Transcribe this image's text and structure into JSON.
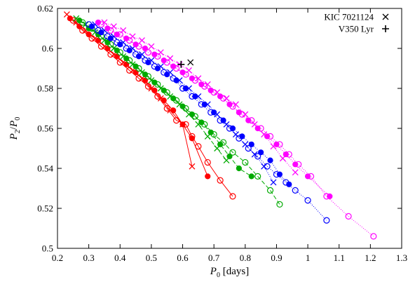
{
  "chart_data": {
    "type": "scatter",
    "xlabel": {
      "prefix": "P",
      "sub": "0",
      "suffix": " [days]"
    },
    "ylabel": {
      "p": "P",
      "num_sub": "2",
      "slash": "/",
      "den": "P",
      "den_sub": "0"
    },
    "xlim": [
      0.2,
      1.3
    ],
    "ylim": [
      0.5,
      0.62
    ],
    "xticks": [
      "0.2",
      "0.3",
      "0.4",
      "0.5",
      "0.6",
      "0.7",
      "0.8",
      "0.9",
      "1",
      "1.1",
      "1.2",
      "1.3"
    ],
    "yticks": [
      "0.5",
      "0.52",
      "0.54",
      "0.56",
      "0.58",
      "0.6",
      "0.62"
    ],
    "grid": false,
    "legend_position": "top-right",
    "legend": [
      {
        "label": "KIC 7021124",
        "marker": "x-cross",
        "x": 0.625,
        "y": 0.593
      },
      {
        "label": "V350 Lyr",
        "marker": "plus",
        "x": 0.595,
        "y": 0.592
      }
    ],
    "series": [
      {
        "color": "#ff0000",
        "marker": "open-circle",
        "dash": "",
        "x": [
          0.25,
          0.28,
          0.31,
          0.34,
          0.37,
          0.4,
          0.43,
          0.46,
          0.49,
          0.52,
          0.55,
          0.58,
          0.61,
          0.63,
          0.65,
          0.68,
          0.72,
          0.76
        ],
        "y": [
          0.614,
          0.609,
          0.605,
          0.601,
          0.597,
          0.593,
          0.589,
          0.585,
          0.581,
          0.576,
          0.57,
          0.564,
          0.562,
          0.556,
          0.551,
          0.543,
          0.534,
          0.526
        ]
      },
      {
        "color": "#ff0000",
        "marker": "filled-circle",
        "dash": "",
        "x": [
          0.24,
          0.27,
          0.3,
          0.33,
          0.36,
          0.39,
          0.42,
          0.45,
          0.48,
          0.51,
          0.54,
          0.57,
          0.6,
          0.63,
          0.68
        ],
        "y": [
          0.615,
          0.611,
          0.607,
          0.604,
          0.6,
          0.596,
          0.592,
          0.588,
          0.584,
          0.579,
          0.574,
          0.569,
          0.562,
          0.555,
          0.536
        ]
      },
      {
        "color": "#ff0000",
        "marker": "x-cross",
        "dash": "",
        "x": [
          0.23,
          0.26,
          0.29,
          0.32,
          0.35,
          0.38,
          0.41,
          0.44,
          0.47,
          0.5,
          0.53,
          0.56,
          0.6,
          0.63
        ],
        "y": [
          0.617,
          0.613,
          0.609,
          0.605,
          0.601,
          0.597,
          0.593,
          0.589,
          0.585,
          0.58,
          0.575,
          0.569,
          0.562,
          0.541
        ]
      },
      {
        "color": "#00aa00",
        "marker": "open-circle",
        "dash": "6,3",
        "x": [
          0.28,
          0.31,
          0.34,
          0.37,
          0.4,
          0.43,
          0.46,
          0.49,
          0.52,
          0.55,
          0.58,
          0.61,
          0.64,
          0.67,
          0.7,
          0.73,
          0.76,
          0.8,
          0.84,
          0.88,
          0.91
        ],
        "y": [
          0.613,
          0.61,
          0.606,
          0.602,
          0.598,
          0.594,
          0.59,
          0.586,
          0.582,
          0.578,
          0.574,
          0.57,
          0.566,
          0.562,
          0.557,
          0.553,
          0.548,
          0.543,
          0.536,
          0.529,
          0.522
        ]
      },
      {
        "color": "#00aa00",
        "marker": "filled-circle",
        "dash": "6,3",
        "x": [
          0.27,
          0.3,
          0.33,
          0.36,
          0.39,
          0.42,
          0.45,
          0.48,
          0.51,
          0.54,
          0.57,
          0.6,
          0.63,
          0.66,
          0.69,
          0.72,
          0.75,
          0.78,
          0.82
        ],
        "y": [
          0.614,
          0.61,
          0.607,
          0.603,
          0.599,
          0.595,
          0.591,
          0.587,
          0.583,
          0.579,
          0.575,
          0.571,
          0.567,
          0.563,
          0.558,
          0.552,
          0.546,
          0.54,
          0.536
        ]
      },
      {
        "color": "#00aa00",
        "marker": "x-cross",
        "dash": "6,3",
        "x": [
          0.26,
          0.29,
          0.32,
          0.35,
          0.38,
          0.41,
          0.44,
          0.47,
          0.5,
          0.53,
          0.56,
          0.59,
          0.62,
          0.65,
          0.68,
          0.71,
          0.74
        ],
        "y": [
          0.615,
          0.612,
          0.608,
          0.604,
          0.6,
          0.596,
          0.592,
          0.588,
          0.584,
          0.58,
          0.576,
          0.572,
          0.567,
          0.562,
          0.556,
          0.55,
          0.544
        ]
      },
      {
        "color": "#0000ff",
        "marker": "open-circle",
        "dash": "1,2",
        "x": [
          0.3,
          0.33,
          0.36,
          0.39,
          0.42,
          0.45,
          0.48,
          0.51,
          0.54,
          0.57,
          0.6,
          0.63,
          0.66,
          0.69,
          0.72,
          0.75,
          0.78,
          0.81,
          0.84,
          0.87,
          0.9,
          0.93,
          0.96,
          1.0,
          1.06
        ],
        "y": [
          0.612,
          0.609,
          0.606,
          0.603,
          0.6,
          0.597,
          0.594,
          0.591,
          0.588,
          0.585,
          0.58,
          0.576,
          0.572,
          0.568,
          0.564,
          0.56,
          0.555,
          0.55,
          0.546,
          0.541,
          0.537,
          0.533,
          0.529,
          0.524,
          0.514
        ]
      },
      {
        "color": "#0000ff",
        "marker": "filled-circle",
        "dash": "1,2",
        "x": [
          0.31,
          0.34,
          0.37,
          0.4,
          0.43,
          0.46,
          0.49,
          0.52,
          0.55,
          0.58,
          0.61,
          0.64,
          0.67,
          0.7,
          0.73,
          0.76,
          0.79,
          0.82,
          0.85,
          0.88,
          0.91,
          0.94
        ],
        "y": [
          0.611,
          0.608,
          0.605,
          0.602,
          0.599,
          0.596,
          0.593,
          0.59,
          0.587,
          0.584,
          0.58,
          0.576,
          0.572,
          0.568,
          0.564,
          0.56,
          0.556,
          0.552,
          0.548,
          0.544,
          0.537,
          0.532
        ]
      },
      {
        "color": "#0000ff",
        "marker": "x-cross",
        "dash": "1,2",
        "x": [
          0.32,
          0.35,
          0.38,
          0.41,
          0.44,
          0.47,
          0.5,
          0.53,
          0.56,
          0.59,
          0.62,
          0.65,
          0.68,
          0.71,
          0.74,
          0.77,
          0.8,
          0.83,
          0.86,
          0.89
        ],
        "y": [
          0.612,
          0.609,
          0.606,
          0.603,
          0.6,
          0.597,
          0.594,
          0.591,
          0.588,
          0.584,
          0.58,
          0.576,
          0.572,
          0.567,
          0.562,
          0.557,
          0.552,
          0.547,
          0.541,
          0.533
        ]
      },
      {
        "color": "#ff00ff",
        "marker": "open-circle",
        "dash": "1,2",
        "x": [
          0.34,
          0.37,
          0.4,
          0.43,
          0.46,
          0.49,
          0.52,
          0.55,
          0.58,
          0.61,
          0.64,
          0.67,
          0.7,
          0.73,
          0.76,
          0.79,
          0.82,
          0.85,
          0.88,
          0.91,
          0.94,
          0.97,
          1.01,
          1.06,
          1.13,
          1.21
        ],
        "y": [
          0.612,
          0.609,
          0.607,
          0.604,
          0.601,
          0.598,
          0.596,
          0.593,
          0.59,
          0.587,
          0.584,
          0.581,
          0.578,
          0.575,
          0.571,
          0.567,
          0.564,
          0.56,
          0.556,
          0.552,
          0.547,
          0.542,
          0.536,
          0.526,
          0.516,
          0.506
        ]
      },
      {
        "color": "#ff00ff",
        "marker": "filled-circle",
        "dash": "1,2",
        "x": [
          0.33,
          0.36,
          0.39,
          0.42,
          0.45,
          0.48,
          0.51,
          0.54,
          0.57,
          0.6,
          0.63,
          0.66,
          0.69,
          0.72,
          0.75,
          0.78,
          0.81,
          0.84,
          0.87,
          0.9,
          0.93,
          0.96,
          1.0,
          1.07
        ],
        "y": [
          0.613,
          0.61,
          0.607,
          0.605,
          0.602,
          0.6,
          0.597,
          0.594,
          0.591,
          0.588,
          0.585,
          0.582,
          0.579,
          0.576,
          0.572,
          0.568,
          0.564,
          0.56,
          0.556,
          0.552,
          0.547,
          0.542,
          0.536,
          0.526
        ]
      },
      {
        "color": "#ff00ff",
        "marker": "x-cross",
        "dash": "1,2",
        "x": [
          0.35,
          0.38,
          0.41,
          0.44,
          0.47,
          0.5,
          0.53,
          0.56,
          0.59,
          0.62,
          0.65,
          0.68,
          0.71,
          0.74,
          0.77,
          0.8,
          0.83,
          0.86,
          0.89,
          0.92,
          0.96
        ],
        "y": [
          0.613,
          0.611,
          0.609,
          0.606,
          0.604,
          0.601,
          0.598,
          0.595,
          0.592,
          0.589,
          0.585,
          0.582,
          0.578,
          0.575,
          0.572,
          0.567,
          0.562,
          0.557,
          0.551,
          0.545,
          0.538
        ]
      }
    ]
  }
}
